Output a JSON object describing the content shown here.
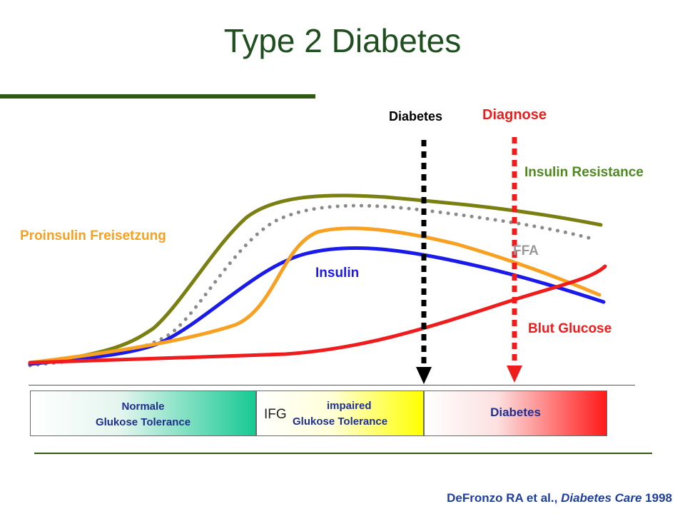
{
  "slide": {
    "title": "Type 2 Diabetes",
    "colors": {
      "title": "#1f4e1f",
      "rule": "#2e5a14",
      "citation": "#1f3f9f"
    }
  },
  "markers": {
    "diabetes": {
      "label": "Diabetes",
      "color": "#000000"
    },
    "diagnose": {
      "label": "Diagnose",
      "color": "#ee1c1c"
    }
  },
  "curves": [
    {
      "label": "Insulin Resistance",
      "color": "#7a7f12",
      "style": "solid"
    },
    {
      "label": "FFA",
      "color": "#8a8a8a",
      "style": "dotted"
    },
    {
      "label": "Proinsulin Freisetzung",
      "color": "#f7a021",
      "style": "solid"
    },
    {
      "label": "Insulin",
      "color": "#1a1aea",
      "style": "solid"
    },
    {
      "label": "Blut Glucose",
      "color": "#ee1c1c",
      "style": "solid"
    }
  ],
  "stages": {
    "normal": {
      "line1": "Normale",
      "line2": "Glukose Tolerance"
    },
    "impaired": {
      "ifg": "IFG",
      "line1": "impaired",
      "line2": "Glukose Tolerance"
    },
    "diabetes": {
      "label": "Diabetes"
    }
  },
  "citation": {
    "authors": "DeFronzo RA et al., ",
    "journal": "Diabetes Care",
    "year": " 1998"
  }
}
